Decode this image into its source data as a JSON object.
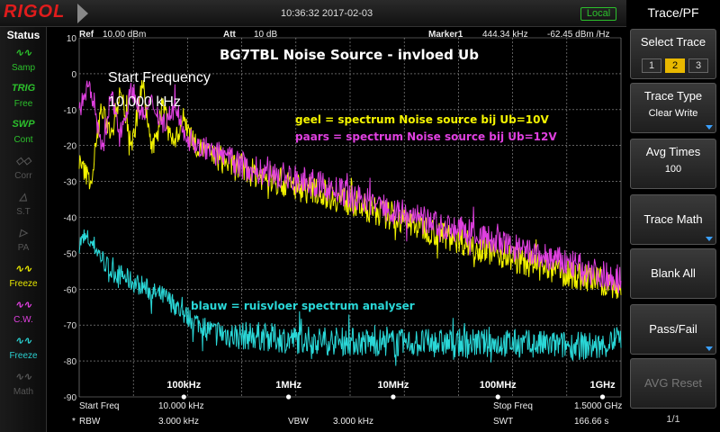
{
  "top_bar": {
    "logo": "RIGOL",
    "datetime": "10:36:32 2017-02-03",
    "mode": "Local"
  },
  "status": {
    "title": "Status",
    "items": [
      {
        "icon": "samp-icon",
        "label": "Samp",
        "color": "#2cc12c"
      },
      {
        "icon": "trig-icon",
        "label": "Free",
        "top": "TRIG",
        "color": "#2cc12c"
      },
      {
        "icon": "swp-icon",
        "label": "Cont",
        "top": "SWP",
        "color": "#2cc12c"
      },
      {
        "icon": "corr-icon",
        "label": "Corr",
        "color": "#555555"
      },
      {
        "icon": "st-icon",
        "label": "S.T",
        "color": "#555555"
      },
      {
        "icon": "pa-icon",
        "label": "PA",
        "color": "#555555"
      },
      {
        "icon": "freeze-icon",
        "label": "Freeze",
        "color": "#e8e800"
      },
      {
        "icon": "cw-icon",
        "label": "C.W.",
        "color": "#e040e0"
      },
      {
        "icon": "freeze2-icon",
        "label": "Freeze",
        "color": "#2ad0d0"
      },
      {
        "icon": "math-icon",
        "label": "Math",
        "color": "#555555"
      }
    ]
  },
  "header": {
    "ref_label": "Ref",
    "ref_value": "10.00 dBm",
    "att_label": "Att",
    "att_value": "10 dB",
    "marker_label": "Marker1",
    "marker_freq": "444.34 kHz",
    "marker_value": "-62.45 dBm /Hz"
  },
  "annotations": {
    "title": "BG7TBL Noise Source - invloed Ub",
    "start_freq_label": "Start Frequency",
    "start_freq_value": "10.000 kHz",
    "yellow_text": "geel = spectrum Noise source bij Ub=10V",
    "magenta_text": "paars = spectrum Noise source bij Ub=12V",
    "cyan_text": "blauw = ruisvloer spectrum analyser"
  },
  "footer": {
    "start_freq_label": "Start Freq",
    "start_freq_value": "10.000 kHz",
    "stop_freq_label": "Stop Freq",
    "stop_freq_value": "1.5000 GHz",
    "rbw_label": "RBW",
    "rbw_value": "3.000 kHz",
    "vbw_label": "VBW",
    "vbw_value": "3.000 kHz",
    "swt_label": "SWT",
    "swt_value": "166.66 s"
  },
  "menu": {
    "title": "Trace/PF",
    "select_trace": {
      "label": "Select Trace",
      "options": [
        "1",
        "2",
        "3"
      ],
      "selected": "2"
    },
    "trace_type": {
      "label": "Trace Type",
      "value": "Clear Write"
    },
    "avg_times": {
      "label": "Avg Times",
      "value": "100"
    },
    "trace_math": {
      "label": "Trace Math"
    },
    "blank_all": {
      "label": "Blank All"
    },
    "pass_fail": {
      "label": "Pass/Fail"
    },
    "avg_reset": {
      "label": "AVG Reset"
    },
    "page": "1/1"
  },
  "chart_data": {
    "type": "line",
    "x_scale": "log",
    "xlim_hz": [
      10000,
      1500000000
    ],
    "ylim": [
      -90,
      10
    ],
    "y_ticks": [
      10,
      0,
      -10,
      -20,
      -30,
      -40,
      -50,
      -60,
      -70,
      -80,
      -90
    ],
    "x_tick_labels": [
      {
        "freq_hz": 100000,
        "label": "100kHz"
      },
      {
        "freq_hz": 1000000,
        "label": "1MHz"
      },
      {
        "freq_hz": 10000000,
        "label": "10MHz"
      },
      {
        "freq_hz": 100000000,
        "label": "100MHz"
      },
      {
        "freq_hz": 1000000000,
        "label": "1GHz"
      }
    ],
    "grid": true,
    "colors": {
      "yellow": "#f4f400",
      "magenta": "#e040e0",
      "cyan": "#2ad8d8",
      "grid": "#9a9a9a"
    },
    "series": [
      {
        "color": "yellow",
        "x_hz": [
          10000,
          13000,
          16000,
          20000,
          25000,
          32000,
          40000,
          50000,
          63000,
          80000,
          100000,
          130000,
          200000,
          316000,
          500000,
          1000000,
          2000000,
          5000000,
          10000000,
          20000000,
          50000000,
          100000000,
          200000000,
          500000000,
          1000000000,
          1500000000
        ],
        "y_dbm": [
          -25,
          -30,
          -10,
          -16,
          -5,
          -20,
          -3,
          -22,
          -8,
          -20,
          -12,
          -20,
          -23,
          -26,
          -28,
          -31,
          -33,
          -37,
          -40,
          -43,
          -47,
          -50,
          -53,
          -56,
          -58,
          -60
        ]
      },
      {
        "color": "magenta",
        "x_hz": [
          10000,
          12000,
          14000,
          17000,
          20000,
          25000,
          32000,
          40000,
          50000,
          63000,
          80000,
          100000,
          130000,
          200000,
          316000,
          500000,
          1000000,
          2000000,
          5000000,
          10000000,
          20000000,
          50000000,
          100000000,
          200000000,
          500000000,
          1000000000,
          1500000000
        ],
        "y_dbm": [
          -10,
          -4,
          -8,
          -22,
          -6,
          -16,
          -4,
          -12,
          -8,
          -14,
          -10,
          -16,
          -20,
          -22,
          -25,
          -27,
          -29,
          -31,
          -35,
          -38,
          -41,
          -44,
          -47,
          -50,
          -53,
          -56,
          -57
        ]
      },
      {
        "color": "cyan",
        "x_hz": [
          10000,
          12000,
          14000,
          17000,
          20000,
          25000,
          32000,
          40000,
          50000,
          63000,
          80000,
          100000,
          130000,
          200000,
          316000,
          500000,
          1000000,
          10000000,
          100000000,
          1000000000,
          1500000000
        ],
        "y_dbm": [
          -47,
          -46,
          -48,
          -52,
          -55,
          -56,
          -58,
          -59,
          -61,
          -62,
          -64,
          -67,
          -69,
          -72,
          -73,
          -73,
          -74,
          -75,
          -75,
          -76,
          -73
        ]
      }
    ],
    "marker": {
      "freq_hz": 444340,
      "value": -62.45
    }
  }
}
